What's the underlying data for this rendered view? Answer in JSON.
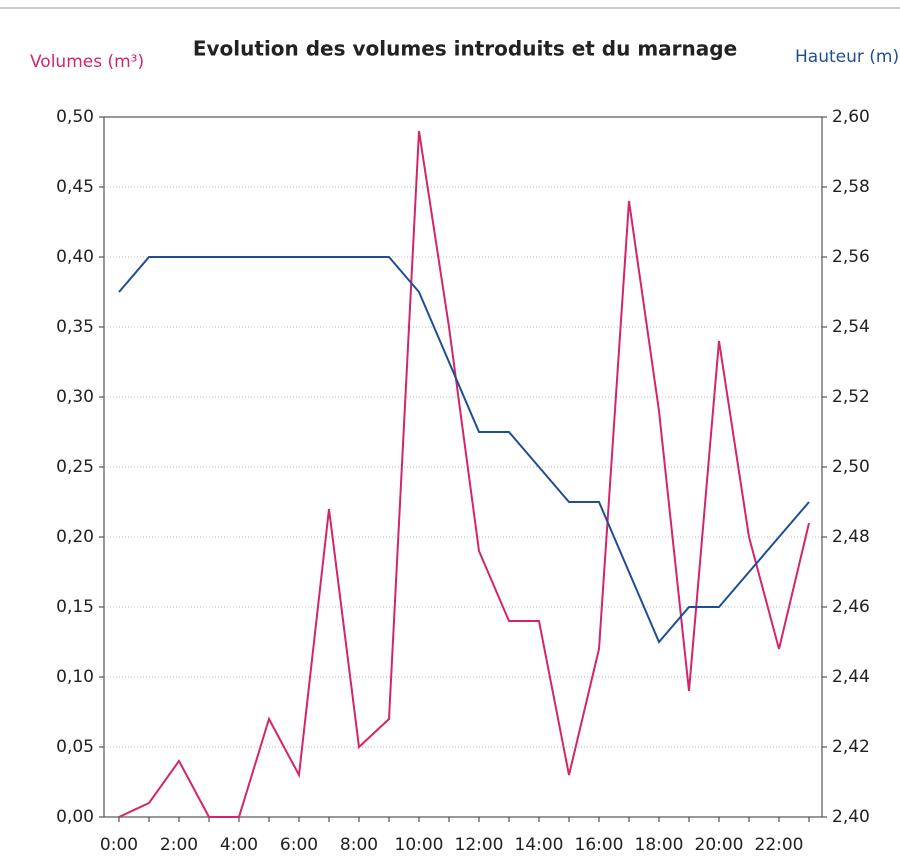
{
  "chart_data": {
    "type": "line",
    "title": "Evolution des volumes introduits et du marnage",
    "y_label": "Volumes (m³)",
    "y2_label": "Hauteur (m)",
    "categories": [
      "0:00",
      null,
      "2:00",
      null,
      "4:00",
      null,
      "6:00",
      null,
      "8:00",
      null,
      "10:00",
      null,
      "12:00",
      null,
      "14:00",
      null,
      "16:00",
      null,
      "18:00",
      null,
      "20:00",
      null,
      "22:00",
      null
    ],
    "series": [
      {
        "name": "Volumes",
        "color": "#d4246c",
        "values": [
          0.0,
          0.01,
          0.04,
          0.0,
          0.0,
          0.07,
          0.03,
          0.22,
          0.05,
          0.07,
          0.49,
          0.35,
          0.19,
          0.14,
          0.14,
          0.03,
          0.12,
          0.44,
          0.29,
          0.09,
          0.34,
          0.2,
          0.12,
          0.21
        ]
      },
      {
        "name": "Hauteur",
        "color": "#1f4e96",
        "axis": "y2",
        "values": [
          2.55,
          2.56,
          2.56,
          2.56,
          2.56,
          2.56,
          2.56,
          2.56,
          2.56,
          2.56,
          2.55,
          2.53,
          2.51,
          2.51,
          2.5,
          2.49,
          2.49,
          2.47,
          2.45,
          2.46,
          2.46,
          2.47,
          2.48,
          2.49
        ]
      }
    ],
    "ylim": [
      0,
      0.5
    ],
    "yticks": [
      {
        "value": 0,
        "label": "0,00"
      },
      {
        "value": 0.05,
        "label": "0,05"
      },
      {
        "value": 0.1,
        "label": "0,10"
      },
      {
        "value": 0.15,
        "label": "0,15"
      },
      {
        "value": 0.2,
        "label": "0,20"
      },
      {
        "value": 0.25,
        "label": "0,25"
      },
      {
        "value": 0.3,
        "label": "0,30"
      },
      {
        "value": 0.35,
        "label": "0,35"
      },
      {
        "value": 0.4,
        "label": "0,40"
      },
      {
        "value": 0.45,
        "label": "0,45"
      },
      {
        "value": 0.5,
        "label": "0,50"
      }
    ],
    "y2lim": [
      2.4,
      2.6
    ],
    "y2ticks": [
      {
        "value": 2.4,
        "label": "2,40"
      },
      {
        "value": 2.42,
        "label": "2,42"
      },
      {
        "value": 2.44,
        "label": "2,44"
      },
      {
        "value": 2.46,
        "label": "2,46"
      },
      {
        "value": 2.48,
        "label": "2,48"
      },
      {
        "value": 2.5,
        "label": "2,50"
      },
      {
        "value": 2.52,
        "label": "2,52"
      },
      {
        "value": 2.54,
        "label": "2,54"
      },
      {
        "value": 2.56,
        "label": "2,56"
      },
      {
        "value": 2.58,
        "label": "2,58"
      },
      {
        "value": 2.6,
        "label": "2,60"
      }
    ],
    "grid": true
  }
}
